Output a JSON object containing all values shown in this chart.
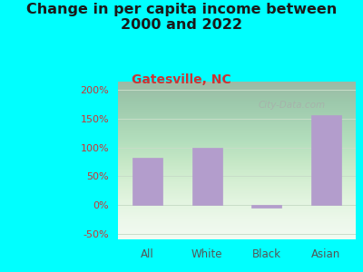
{
  "title": "Change in per capita income between\n2000 and 2022",
  "subtitle": "Gatesville, NC",
  "categories": [
    "All",
    "White",
    "Black",
    "Asian"
  ],
  "values": [
    82,
    100,
    -5,
    157
  ],
  "bar_color": "#b39dcc",
  "background_outer": "#00ffff",
  "background_inner_top": "#c8e8d0",
  "background_inner_bottom": "#f0faf0",
  "title_color": "#1a1a1a",
  "subtitle_color": "#cc3333",
  "ytick_color": "#cc3333",
  "xtick_color": "#555555",
  "ylim": [
    -60,
    215
  ],
  "yticks": [
    -50,
    0,
    50,
    100,
    150,
    200
  ],
  "grid_color": "#c8ddc8",
  "watermark": "City-Data.com",
  "title_fontsize": 11.5,
  "subtitle_fontsize": 10
}
